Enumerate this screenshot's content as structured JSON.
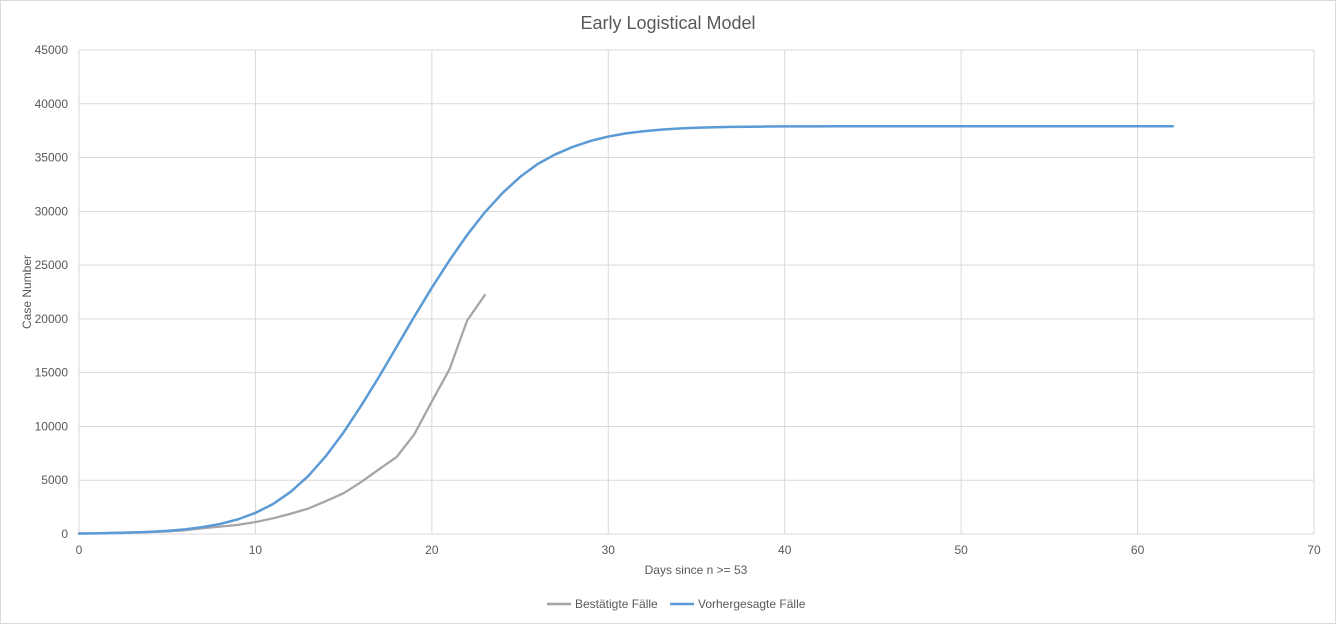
{
  "chart_data": {
    "type": "line",
    "title": "Early Logistical Model",
    "xlabel": "Days since n >= 53",
    "ylabel": "Case Number",
    "xlim": [
      0,
      70
    ],
    "ylim": [
      0,
      45000
    ],
    "x_ticks": [
      "0",
      "10",
      "20",
      "30",
      "40",
      "50",
      "60",
      "70"
    ],
    "y_ticks": [
      "0",
      "5000",
      "10000",
      "15000",
      "20000",
      "25000",
      "30000",
      "35000",
      "40000",
      "45000"
    ],
    "grid": true,
    "legend_position": "bottom",
    "series": [
      {
        "name": "Bestätigte Fälle",
        "color": "#a5a5a5",
        "x": [
          0,
          1,
          2,
          3,
          4,
          5,
          6,
          7,
          8,
          9,
          10,
          11,
          12,
          13,
          14,
          15,
          16,
          17,
          18,
          19,
          20,
          21,
          22,
          23
        ],
        "y": [
          53,
          66,
          117,
          150,
          188,
          240,
          349,
          534,
          684,
          847,
          1112,
          1460,
          1884,
          2369,
          3062,
          3795,
          4838,
          6012,
          7156,
          9257,
          12327,
          15320,
          19848,
          22213
        ]
      },
      {
        "name": "Vorhergesagte Fälle",
        "color": "#5b9bd5",
        "x": [
          0,
          1,
          2,
          3,
          4,
          5,
          6,
          7,
          8,
          9,
          10,
          11,
          12,
          13,
          14,
          15,
          16,
          17,
          18,
          19,
          20,
          21,
          22,
          23,
          24,
          25,
          26,
          27,
          28,
          29,
          30,
          31,
          32,
          33,
          34,
          35,
          36,
          37,
          38,
          39,
          40,
          41,
          42,
          43,
          44,
          45,
          46,
          47,
          48,
          49,
          50,
          51,
          52,
          53,
          54,
          55,
          56,
          57,
          58,
          59,
          60,
          61,
          62
        ],
        "y": [
          40,
          60,
          90,
          135,
          200,
          295,
          435,
          640,
          935,
          1360,
          1960,
          2790,
          3920,
          5400,
          7260,
          9450,
          11950,
          14600,
          17400,
          20200,
          22900,
          25450,
          27800,
          29900,
          31700,
          33200,
          34400,
          35300,
          36000,
          36550,
          36950,
          37250,
          37450,
          37600,
          37700,
          37770,
          37820,
          37850,
          37870,
          37885,
          37895,
          37900,
          37903,
          37905,
          37906,
          37907,
          37907,
          37907,
          37907,
          37907,
          37907,
          37907,
          37907,
          37907,
          37907,
          37907,
          37907,
          37907,
          37907,
          37907,
          37907,
          37907,
          37907
        ]
      }
    ]
  }
}
